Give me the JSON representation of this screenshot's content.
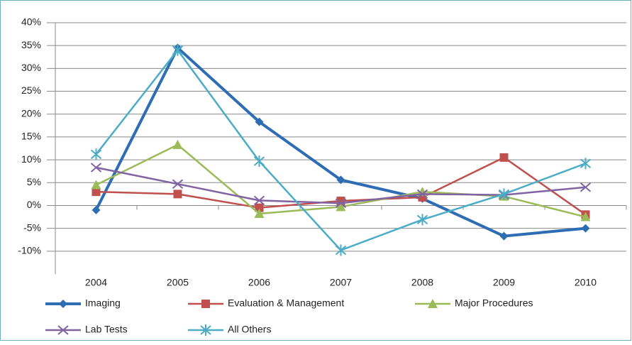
{
  "chart_data": {
    "type": "line",
    "categories": [
      "2004",
      "2005",
      "2006",
      "2007",
      "2008",
      "2009",
      "2010"
    ],
    "series": [
      {
        "name": "Imaging",
        "color": "#2e6db4",
        "values": [
          -1,
          34.5,
          18.3,
          5.6,
          1.5,
          -6.7,
          -5
        ]
      },
      {
        "name": "Evaluation & Management",
        "color": "#c0504d",
        "values": [
          3,
          2.5,
          -0.5,
          1,
          1.8,
          10.5,
          -2
        ]
      },
      {
        "name": "Major Procedures",
        "color": "#9bbb59",
        "values": [
          4.5,
          13.3,
          -1.8,
          -0.3,
          3,
          2,
          -2.5
        ]
      },
      {
        "name": "Lab Tests",
        "color": "#8064a2",
        "values": [
          8.3,
          4.7,
          1.1,
          0.5,
          2.5,
          2.3,
          4
        ]
      },
      {
        "name": "All Others",
        "color": "#4bacc6",
        "values": [
          11.2,
          34,
          9.7,
          -9.8,
          -3.1,
          2.5,
          9.2
        ]
      }
    ],
    "ylim": [
      -15,
      40
    ],
    "yticks": [
      {
        "value": -10,
        "label": "-10%"
      },
      {
        "value": -5,
        "label": "-5%"
      },
      {
        "value": 0,
        "label": "0%"
      },
      {
        "value": 5,
        "label": "5%"
      },
      {
        "value": 10,
        "label": "10%"
      },
      {
        "value": 15,
        "label": "15%"
      },
      {
        "value": 20,
        "label": "20%"
      },
      {
        "value": 25,
        "label": "25%"
      },
      {
        "value": 30,
        "label": "30%"
      },
      {
        "value": 35,
        "label": "35%"
      },
      {
        "value": 40,
        "label": "40%"
      }
    ],
    "grid": true
  }
}
